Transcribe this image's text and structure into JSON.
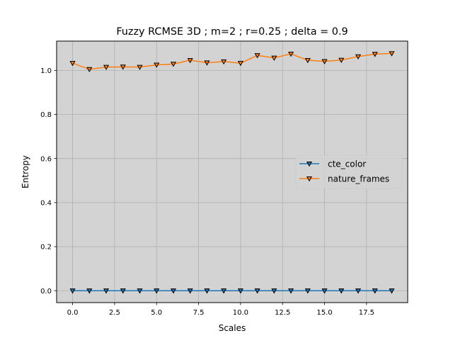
{
  "chart_data": {
    "type": "line",
    "title": "Fuzzy RCMSE 3D ; m=2 ; r=0.25 ; delta = 0.9",
    "xlabel": "Scales",
    "ylabel": "Entropy",
    "xlim": [
      -0.95,
      19.95
    ],
    "ylim": [
      -0.054,
      1.133
    ],
    "xticks": [
      0.0,
      2.5,
      5.0,
      7.5,
      10.0,
      12.5,
      15.0,
      17.5
    ],
    "xtick_labels": [
      "0.0",
      "2.5",
      "5.0",
      "7.5",
      "10.0",
      "12.5",
      "15.0",
      "17.5"
    ],
    "yticks": [
      0.0,
      0.2,
      0.4,
      0.6,
      0.8,
      1.0
    ],
    "ytick_labels": [
      "0.0",
      "0.2",
      "0.4",
      "0.6",
      "0.8",
      "1.0"
    ],
    "grid": true,
    "legend_position": "center-right",
    "plot_background": "#d3d3d3",
    "grid_color": "#b0b0b0",
    "marker": "triangle-down",
    "x": [
      0,
      1,
      2,
      3,
      4,
      5,
      6,
      7,
      8,
      9,
      10,
      11,
      12,
      13,
      14,
      15,
      16,
      17,
      18,
      19
    ],
    "series": [
      {
        "name": "cte_color",
        "color": "#1f77b4",
        "values": [
          0,
          0,
          0,
          0,
          0,
          0,
          0,
          0,
          0,
          0,
          0,
          0,
          0,
          0,
          0,
          0,
          0,
          0,
          0,
          0
        ]
      },
      {
        "name": "nature_frames",
        "color": "#ff7f0e",
        "values": [
          1.033,
          1.005,
          1.015,
          1.016,
          1.015,
          1.025,
          1.029,
          1.046,
          1.035,
          1.04,
          1.033,
          1.068,
          1.057,
          1.075,
          1.046,
          1.041,
          1.047,
          1.063,
          1.074,
          1.077
        ]
      }
    ]
  }
}
